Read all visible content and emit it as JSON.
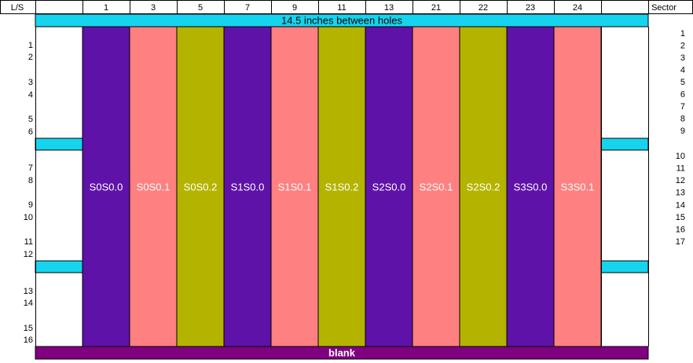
{
  "header": {
    "ls_label": "L/S",
    "slots": [
      "1",
      "3",
      "5",
      "7",
      "9",
      "11",
      "13",
      "21",
      "22",
      "23",
      "24"
    ],
    "sector_label": "Sector"
  },
  "banner": "14.5 inches between holes",
  "columns": [
    {
      "label": "S0S0.0",
      "color": "#5f12a8"
    },
    {
      "label": "S0S0.1",
      "color": "#ff8080"
    },
    {
      "label": "S0S0.2",
      "color": "#b4b400"
    },
    {
      "label": "S1S0.0",
      "color": "#5f12a8"
    },
    {
      "label": "S1S0.1",
      "color": "#ff8080"
    },
    {
      "label": "S1S0.2",
      "color": "#b4b400"
    },
    {
      "label": "S2S0.0",
      "color": "#5f12a8"
    },
    {
      "label": "S2S0.1",
      "color": "#ff8080"
    },
    {
      "label": "S2S0.2",
      "color": "#b4b400"
    },
    {
      "label": "S3S0.0",
      "color": "#5f12a8"
    },
    {
      "label": "S3S0.1",
      "color": "#ff8080"
    }
  ],
  "ls_numbers": [
    "1",
    "2",
    "3",
    "4",
    "5",
    "6",
    "7",
    "8",
    "9",
    "10",
    "11",
    "12",
    "13",
    "14",
    "15",
    "16"
  ],
  "sector_numbers": [
    "1",
    "2",
    "3",
    "4",
    "5",
    "6",
    "7",
    "8",
    "9",
    "10",
    "11",
    "12",
    "13",
    "14",
    "15",
    "16",
    "17"
  ],
  "footer": "blank"
}
